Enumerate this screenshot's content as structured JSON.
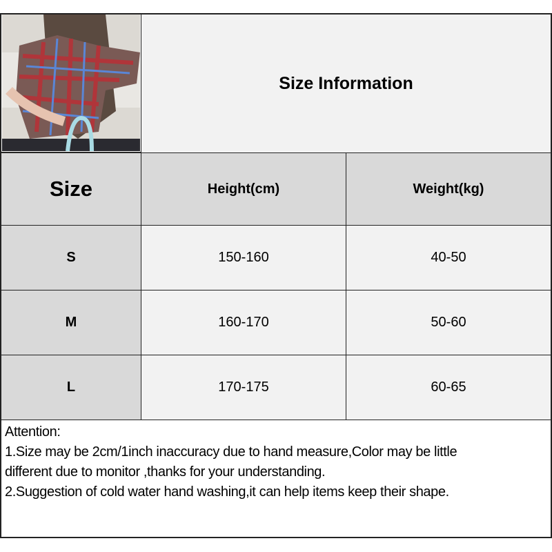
{
  "title": "Size Information",
  "table": {
    "headers": [
      "Size",
      "Height(cm)",
      "Weight(kg)"
    ],
    "rows": [
      {
        "size": "S",
        "height": "150-160",
        "weight": "40-50"
      },
      {
        "size": "M",
        "height": "160-170",
        "weight": "50-60"
      },
      {
        "size": "L",
        "height": "170-175",
        "weight": "60-65"
      }
    ]
  },
  "notes": {
    "heading": "Attention:",
    "line1a": "1.Size may be 2cm/1inch inaccuracy due to hand measure,Color may be little",
    "line1b": "different due to monitor ,thanks for your understanding.",
    "line2": "2.Suggestion of cold water hand washing,it can help items keep their shape."
  },
  "colors": {
    "header_bg": "#d9d9d9",
    "cell_bg": "#f2f2f2",
    "border": "#222222"
  }
}
